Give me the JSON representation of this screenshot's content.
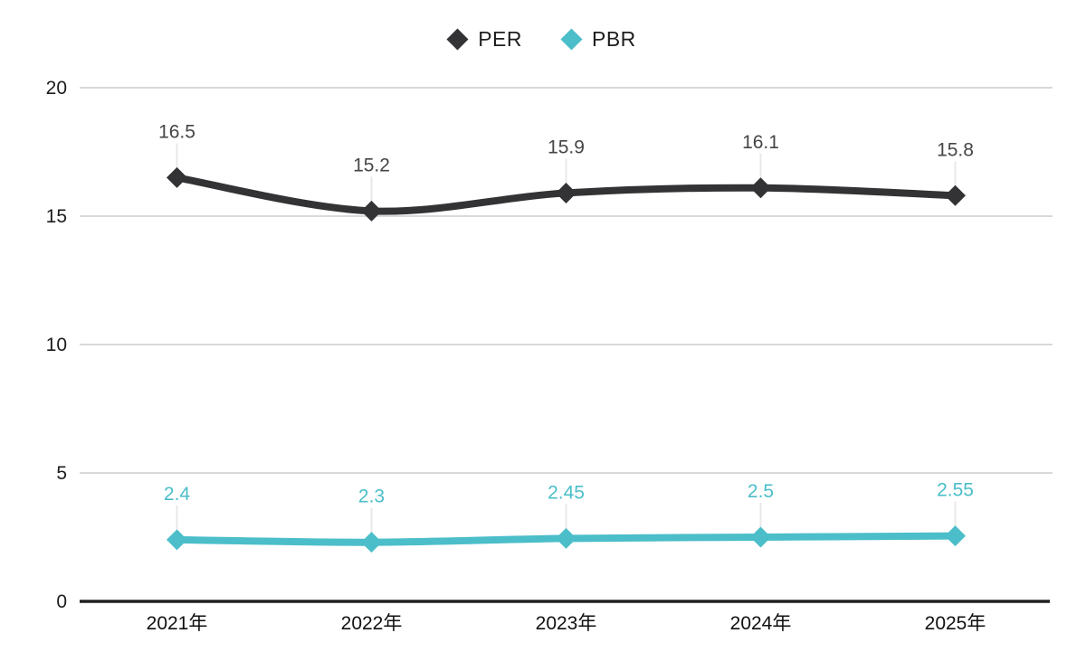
{
  "chart_data": {
    "type": "line",
    "title": "",
    "xlabel": "",
    "ylabel": "",
    "categories": [
      "2021年",
      "2022年",
      "2023年",
      "2024年",
      "2025年"
    ],
    "series": [
      {
        "name": "PER",
        "values": [
          16.5,
          15.2,
          15.9,
          16.1,
          15.8
        ],
        "labels": [
          "16.5",
          "15.2",
          "15.9",
          "16.1",
          "15.8"
        ],
        "color": "#333336",
        "label_color": "#454545"
      },
      {
        "name": "PBR",
        "values": [
          2.4,
          2.3,
          2.45,
          2.5,
          2.55
        ],
        "labels": [
          "2.4",
          "2.3",
          "2.45",
          "2.5",
          "2.55"
        ],
        "color": "#4bbec9",
        "label_color": "#4bbec9"
      }
    ],
    "ylim": [
      0,
      20
    ],
    "yticks": [
      0,
      5,
      10,
      15,
      20
    ],
    "grid": "horizontal",
    "legend_position": "top-center",
    "marker": "diamond",
    "colors": {
      "gridline": "#d9d9d9",
      "axis_line": "#212121",
      "tick_text": "#1c1c1c",
      "leader_line": "#e8e8e8",
      "background": "#ffffff"
    }
  }
}
